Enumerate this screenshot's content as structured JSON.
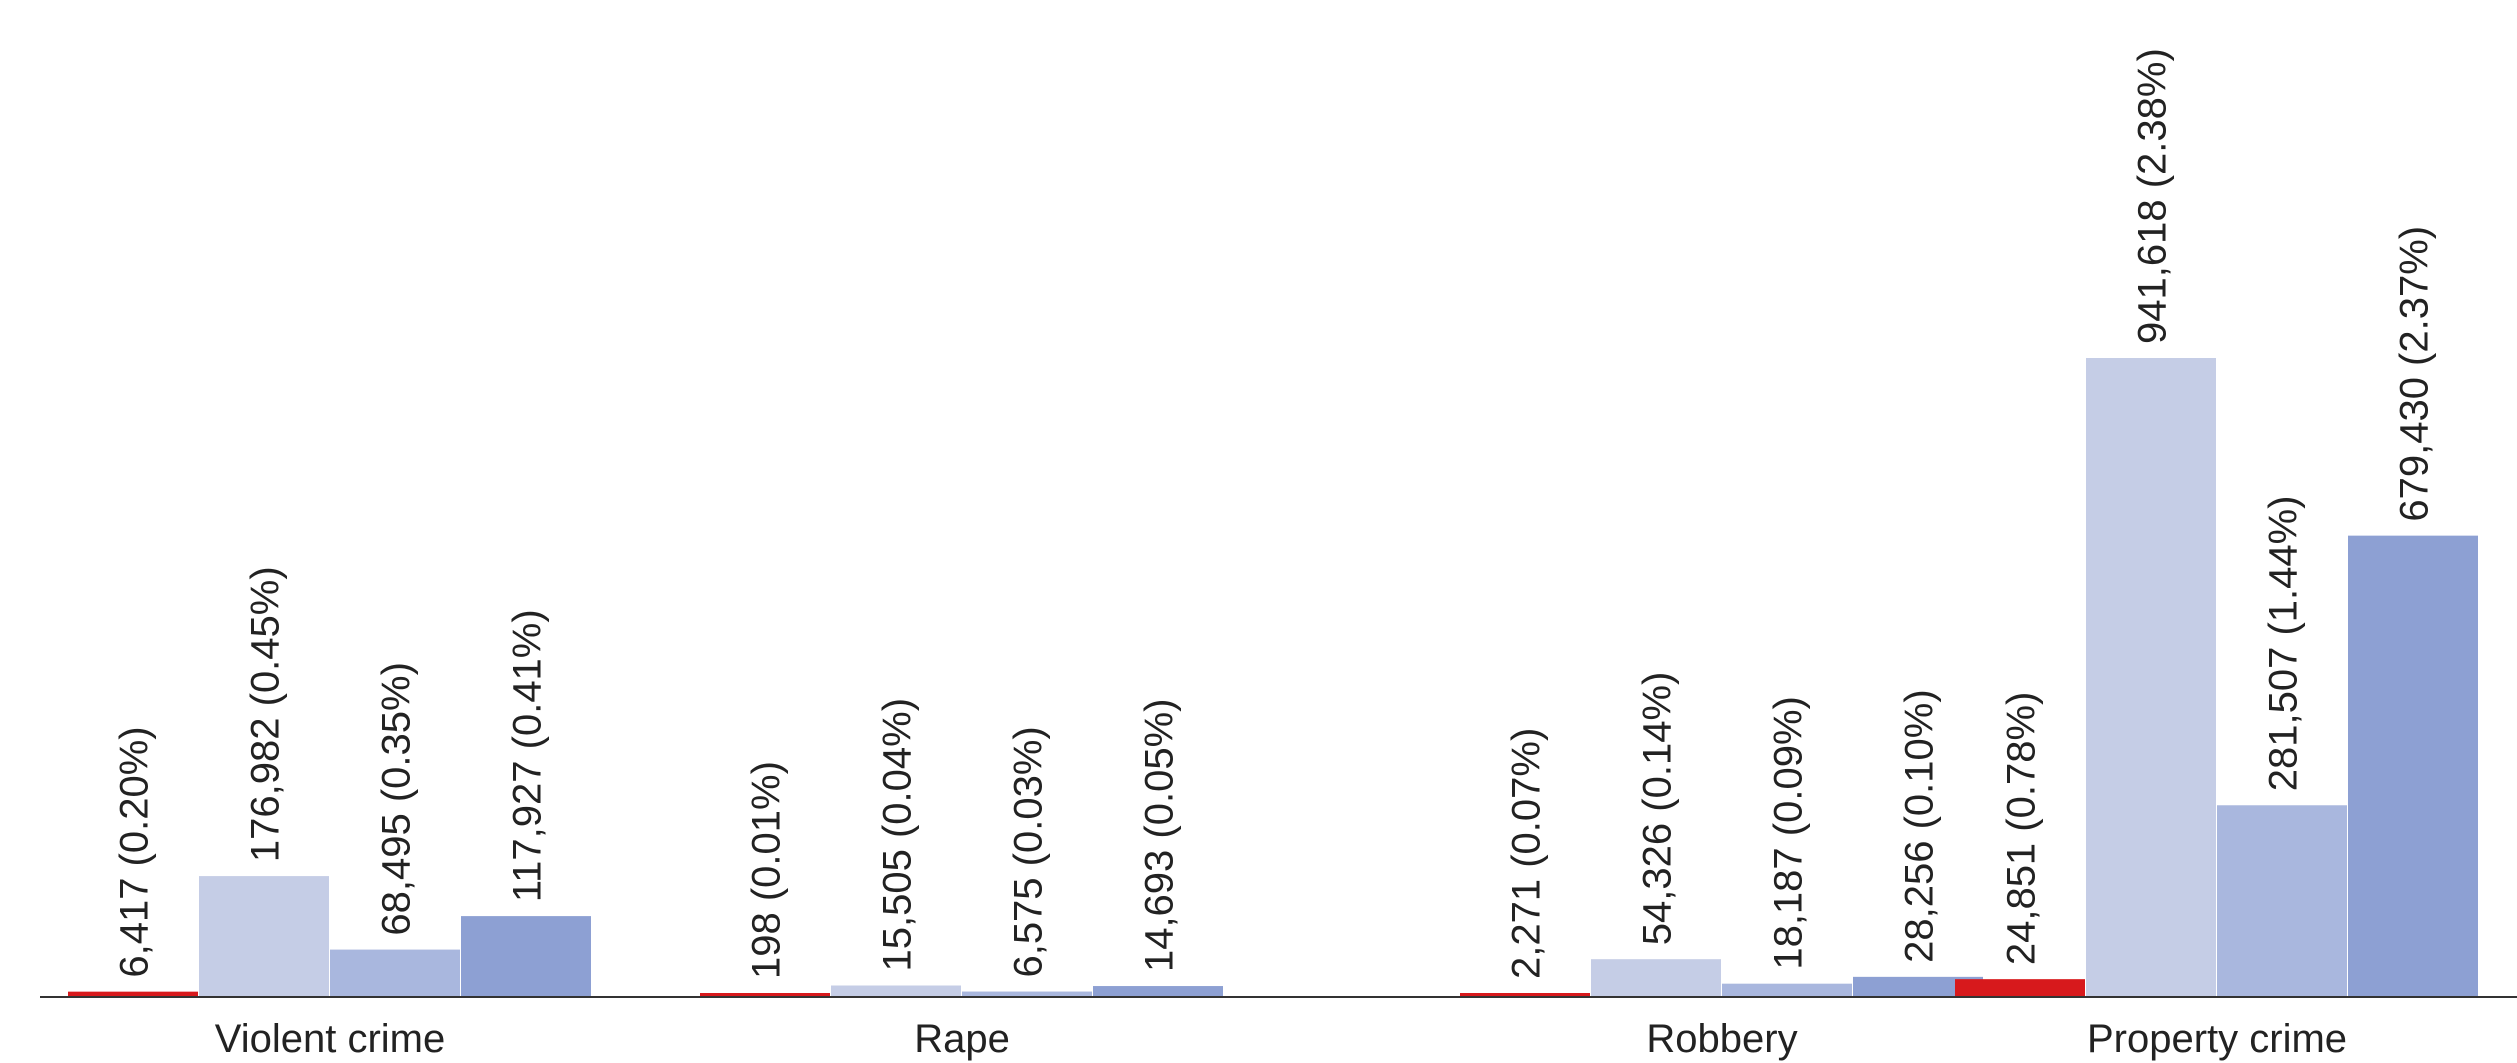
{
  "chart_data": {
    "type": "bar",
    "categories": [
      "Violent crime",
      "Rape",
      "Robbery",
      "Property crime"
    ],
    "series": [
      {
        "color": "#d7191c",
        "values": [
          6417,
          198,
          2271,
          24851
        ],
        "labels": [
          "6,417 (0.20%)",
          "198 (0.01%)",
          "2,271 (0.07%)",
          "24,851 (0.78%)"
        ]
      },
      {
        "color": "#c5cde6",
        "values": [
          176982,
          15505,
          54326,
          941618
        ],
        "labels": [
          "176,982 (0.45%)",
          "15,505 (0.04%)",
          "54,326 (0.14%)",
          "941,618 (2.38%)"
        ]
      },
      {
        "color": "#a9b7de",
        "values": [
          68495,
          6575,
          18187,
          281507
        ],
        "labels": [
          "68,495 (0.35%)",
          "6,575 (0.03%)",
          "18,187 (0.09%)",
          "281,507 (1.44%)"
        ]
      },
      {
        "color": "#8da0d3",
        "values": [
          117927,
          14693,
          28256,
          679430
        ],
        "labels": [
          "117,927 (0.41%)",
          "14,693 (0.05%)",
          "28,256 (0.10%)",
          "679,430 (2.37%)"
        ]
      }
    ],
    "ylim": [
      0,
      941618
    ],
    "grid": false,
    "legend": "none"
  }
}
